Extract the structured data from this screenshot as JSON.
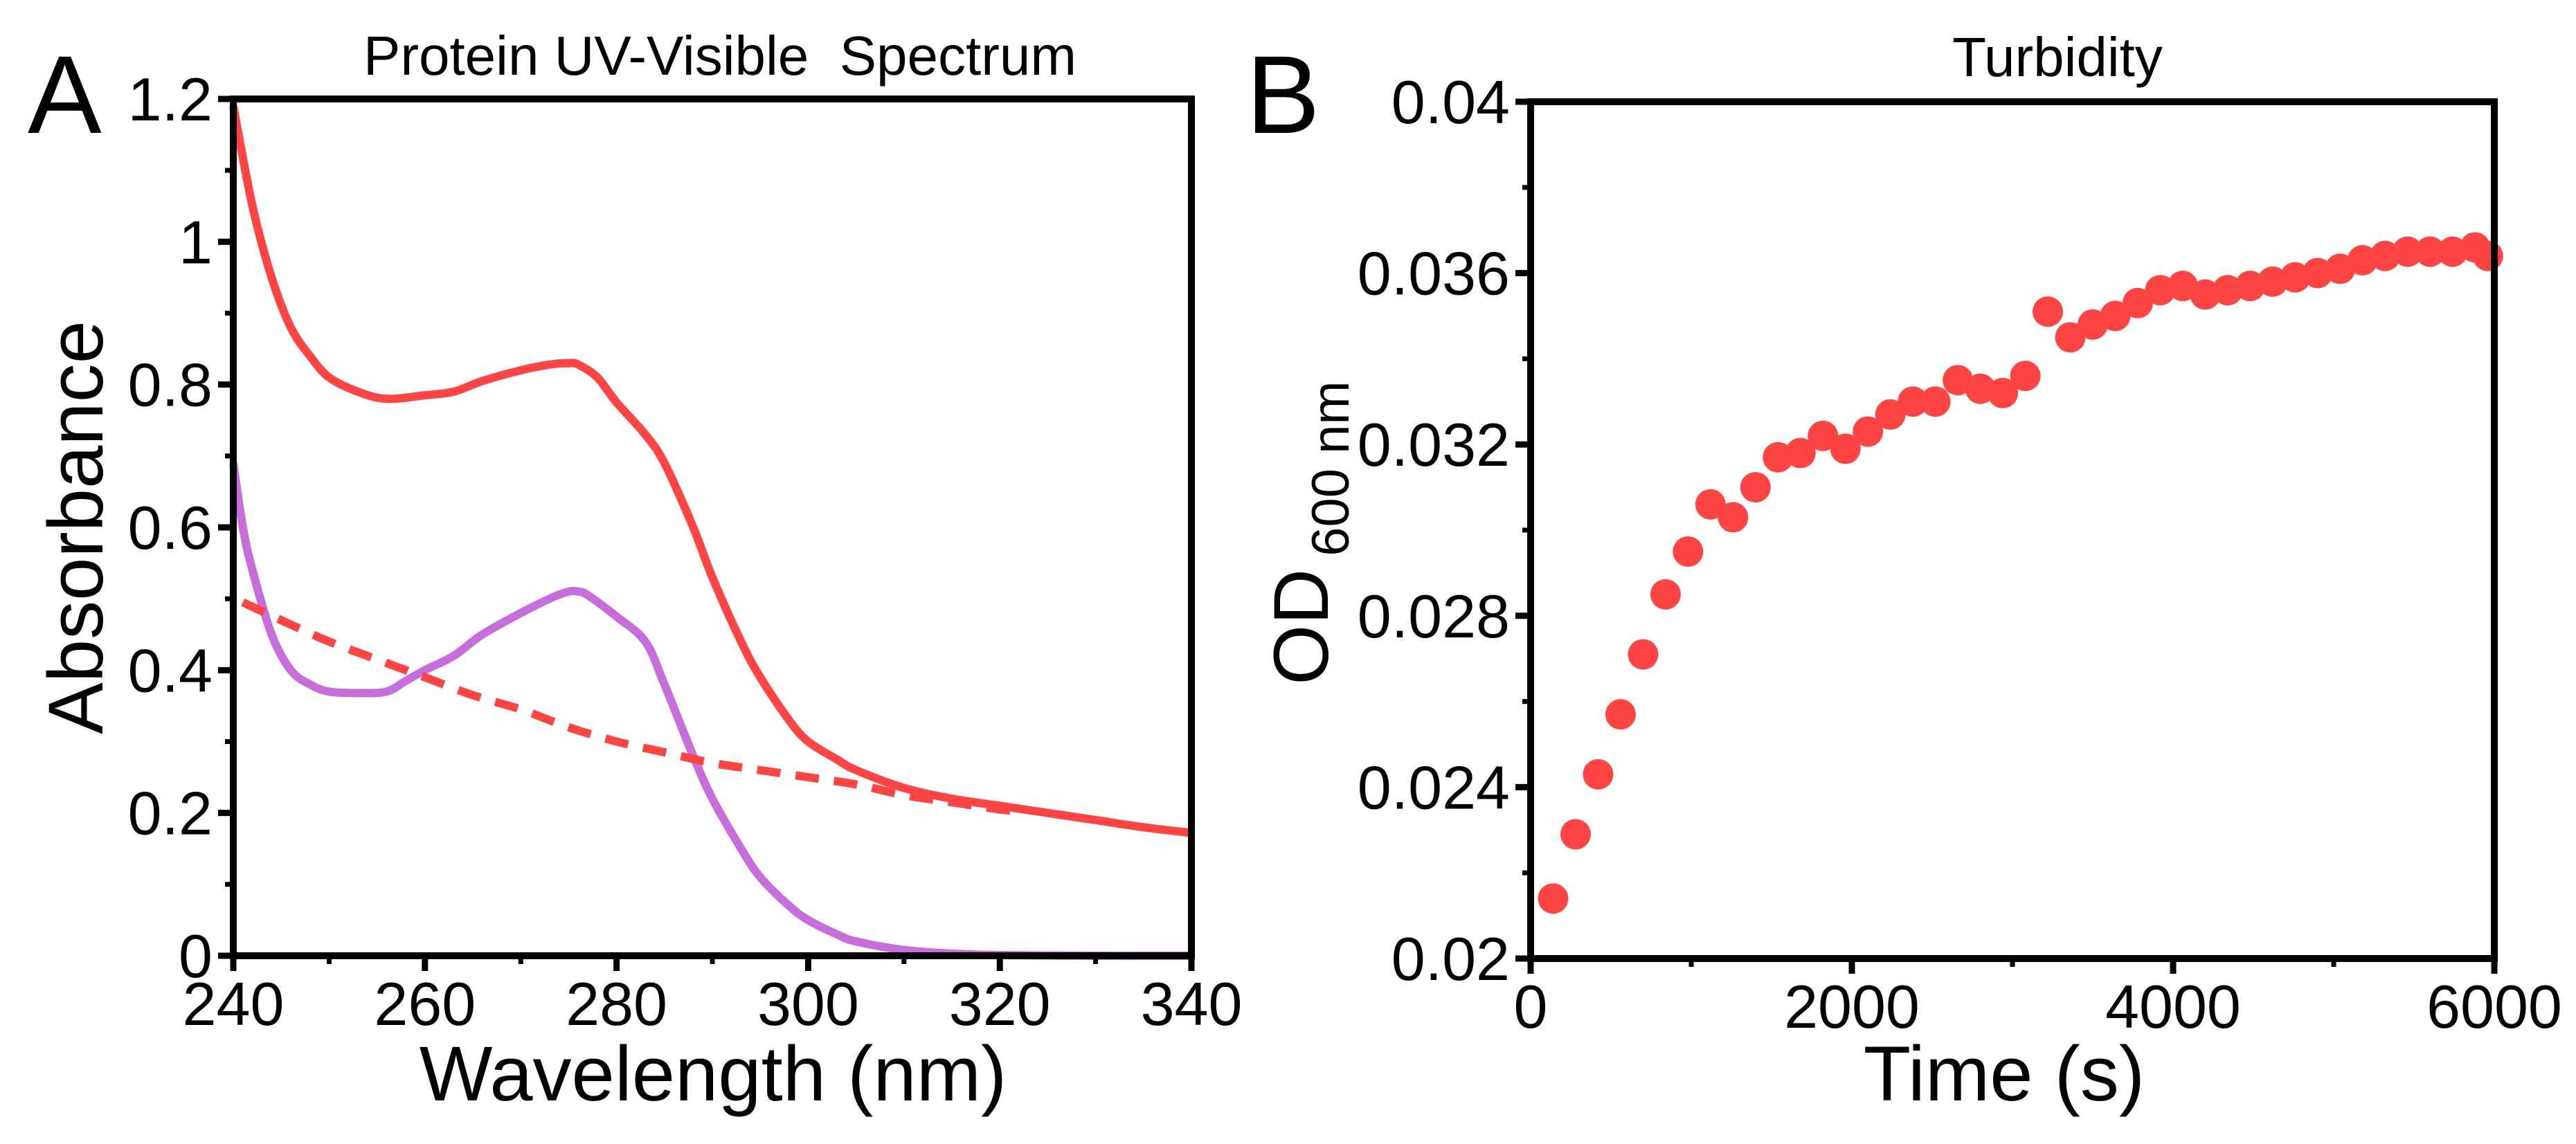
{
  "colors": {
    "red": "#ff4444",
    "purple": "#c86ddc",
    "axis": "#000000"
  },
  "chart_data": [
    {
      "panel": "A",
      "type": "line",
      "title": "Protein UV-Visible  Spectrum",
      "xlabel": "Wavelength (nm)",
      "ylabel": "Absorbance",
      "xlim": [
        240,
        340
      ],
      "ylim": [
        0,
        1.2
      ],
      "xticks": [
        240,
        260,
        280,
        300,
        320,
        340
      ],
      "xtick_labels": [
        "240",
        "260",
        "280",
        "300",
        "320",
        "340"
      ],
      "yticks": [
        0,
        0.2,
        0.4,
        0.6,
        0.8,
        1.0,
        1.2
      ],
      "ytick_labels": [
        "0",
        "0.2",
        "0.4",
        "0.6",
        "0.8",
        "1",
        "1.2"
      ],
      "grid": false,
      "series": [
        {
          "name": "red-solid",
          "color": "#ff4444",
          "style": "solid",
          "x": [
            240,
            242,
            244,
            246,
            248,
            250,
            253,
            256,
            260,
            263,
            266,
            270,
            273,
            275,
            276,
            278,
            280,
            283,
            285,
            288,
            290,
            293,
            295,
            298,
            300,
            303,
            305,
            310,
            315,
            320,
            325,
            330,
            335,
            340
          ],
          "y": [
            1.19,
            1.05,
            0.95,
            0.88,
            0.84,
            0.81,
            0.79,
            0.78,
            0.785,
            0.79,
            0.805,
            0.82,
            0.828,
            0.83,
            0.828,
            0.81,
            0.775,
            0.73,
            0.69,
            0.6,
            0.53,
            0.44,
            0.39,
            0.33,
            0.3,
            0.275,
            0.26,
            0.235,
            0.22,
            0.21,
            0.2,
            0.19,
            0.18,
            0.172
          ]
        },
        {
          "name": "purple-solid",
          "color": "#c86ddc",
          "style": "solid",
          "x": [
            240,
            241,
            242,
            244,
            246,
            248,
            250,
            253,
            256,
            258,
            260,
            263,
            266,
            270,
            273,
            275,
            276,
            277,
            280,
            283,
            285,
            288,
            290,
            293,
            295,
            298,
            300,
            303,
            305,
            310,
            315,
            320,
            330,
            340
          ],
          "y": [
            0.69,
            0.6,
            0.54,
            0.45,
            0.4,
            0.38,
            0.37,
            0.368,
            0.37,
            0.385,
            0.4,
            0.42,
            0.45,
            0.48,
            0.5,
            0.51,
            0.51,
            0.505,
            0.475,
            0.44,
            0.38,
            0.28,
            0.22,
            0.15,
            0.11,
            0.07,
            0.05,
            0.03,
            0.02,
            0.008,
            0.003,
            0.001,
            0.0,
            0.0
          ]
        },
        {
          "name": "red-dashed",
          "color": "#ff4444",
          "style": "dashed",
          "x": [
            241,
            245,
            250,
            255,
            260,
            265,
            270,
            275,
            280,
            285,
            290,
            295,
            300,
            305,
            310,
            315,
            320,
            322
          ],
          "y": [
            0.495,
            0.47,
            0.44,
            0.415,
            0.39,
            0.365,
            0.345,
            0.32,
            0.3,
            0.285,
            0.27,
            0.26,
            0.25,
            0.24,
            0.225,
            0.215,
            0.205,
            0.203
          ]
        }
      ]
    },
    {
      "panel": "B",
      "type": "scatter",
      "title": "Turbidity",
      "xlabel": "Time (s)",
      "ylabel": "OD",
      "ylabel_sub": "600 nm",
      "xlim": [
        0,
        6000
      ],
      "ylim": [
        0.02,
        0.04
      ],
      "xticks": [
        0,
        2000,
        4000,
        6000
      ],
      "xtick_labels": [
        "0",
        "2000",
        "4000",
        "6000"
      ],
      "yticks": [
        0.02,
        0.024,
        0.028,
        0.032,
        0.036,
        0.04
      ],
      "ytick_labels": [
        "0.02",
        "0.024",
        "0.028",
        "0.032",
        "0.036",
        "0.04"
      ],
      "grid": false,
      "series": [
        {
          "name": "OD600",
          "color": "#ff4444",
          "x": [
            140,
            280,
            420,
            560,
            700,
            840,
            980,
            1120,
            1260,
            1400,
            1540,
            1680,
            1820,
            1960,
            2100,
            2240,
            2380,
            2520,
            2660,
            2800,
            2940,
            3080,
            3220,
            3360,
            3500,
            3640,
            3780,
            3920,
            4060,
            4200,
            4340,
            4480,
            4620,
            4760,
            4900,
            5040,
            5180,
            5320,
            5460,
            5600,
            5740,
            5880,
            5960
          ],
          "y": [
            0.0214,
            0.0229,
            0.0243,
            0.0257,
            0.0271,
            0.0285,
            0.0295,
            0.0306,
            0.0303,
            0.031,
            0.0317,
            0.0318,
            0.0322,
            0.0319,
            0.0323,
            0.0327,
            0.033,
            0.033,
            0.0335,
            0.0333,
            0.0332,
            0.0336,
            0.0351,
            0.0345,
            0.0348,
            0.035,
            0.0353,
            0.0356,
            0.0357,
            0.0355,
            0.0356,
            0.0357,
            0.0358,
            0.0359,
            0.036,
            0.0361,
            0.0363,
            0.0364,
            0.0365,
            0.0365,
            0.0365,
            0.0366,
            0.0364
          ]
        }
      ]
    }
  ],
  "labels": {
    "panel_a": "A",
    "panel_b": "B"
  }
}
